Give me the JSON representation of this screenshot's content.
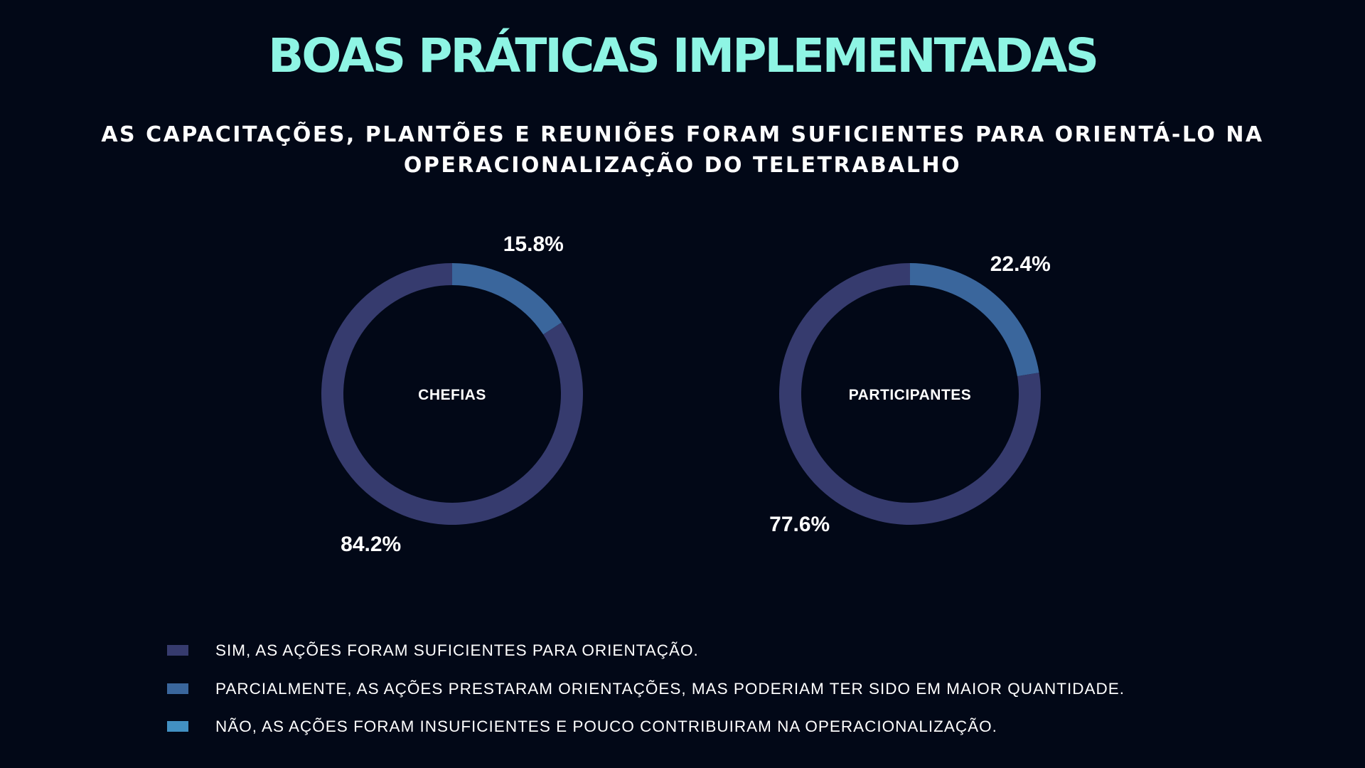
{
  "page": {
    "title": "BOAS PRÁTICAS IMPLEMENTADAS",
    "subtitle": "AS CAPACITAÇÕES, PLANTÕES E REUNIÕES FORAM SUFICIENTES PARA ORIENTÁ-LO NA OPERACIONALIZAÇÃO DO TELETRABALHO"
  },
  "colors": {
    "background": "#020817",
    "title": "#8ef5e4",
    "text": "#ffffff"
  },
  "legend": {
    "items": [
      {
        "label": "SIM, AS AÇÕES FORAM SUFICIENTES PARA ORIENTAÇÃO.",
        "color": "#363b6e"
      },
      {
        "label": "PARCIALMENTE, AS AÇÕES PRESTARAM ORIENTAÇÕES, MAS PODERIAM TER SIDO EM MAIOR QUANTIDADE.",
        "color": "#3a669c"
      },
      {
        "label": "NÃO, AS AÇÕES FORAM INSUFICIENTES E POUCO CONTRIBUIRAM NA OPERACIONALIZAÇÃO.",
        "color": "#4290c2"
      }
    ]
  },
  "chart_data": [
    {
      "type": "pie",
      "variant": "donut",
      "center_label": "CHEFIAS",
      "slices": [
        {
          "category": "SIM, AS AÇÕES FORAM SUFICIENTES PARA ORIENTAÇÃO.",
          "value": 84.2,
          "label": "84.2%",
          "color": "#363b6e"
        },
        {
          "category": "PARCIALMENTE, AS AÇÕES PRESTARAM ORIENTAÇÕES, MAS PODERIAM TER SIDO EM MAIOR QUANTIDADE.",
          "value": 15.8,
          "label": "15.8%",
          "color": "#3a669c"
        },
        {
          "category": "NÃO, AS AÇÕES FORAM INSUFICIENTES E POUCO CONTRIBUIRAM NA OPERACIONALIZAÇÃO.",
          "value": 0,
          "label": "",
          "color": "#4290c2"
        }
      ]
    },
    {
      "type": "pie",
      "variant": "donut",
      "center_label": "PARTICIPANTES",
      "slices": [
        {
          "category": "SIM, AS AÇÕES FORAM SUFICIENTES PARA ORIENTAÇÃO.",
          "value": 77.6,
          "label": "77.6%",
          "color": "#363b6e"
        },
        {
          "category": "PARCIALMENTE, AS AÇÕES PRESTARAM ORIENTAÇÕES, MAS PODERIAM TER SIDO EM MAIOR QUANTIDADE.",
          "value": 22.4,
          "label": "22.4%",
          "color": "#3a669c"
        },
        {
          "category": "NÃO, AS AÇÕES FORAM INSUFICIENTES E POUCO CONTRIBUIRAM NA OPERACIONALIZAÇÃO.",
          "value": 0,
          "label": "",
          "color": "#4290c2"
        }
      ]
    }
  ]
}
